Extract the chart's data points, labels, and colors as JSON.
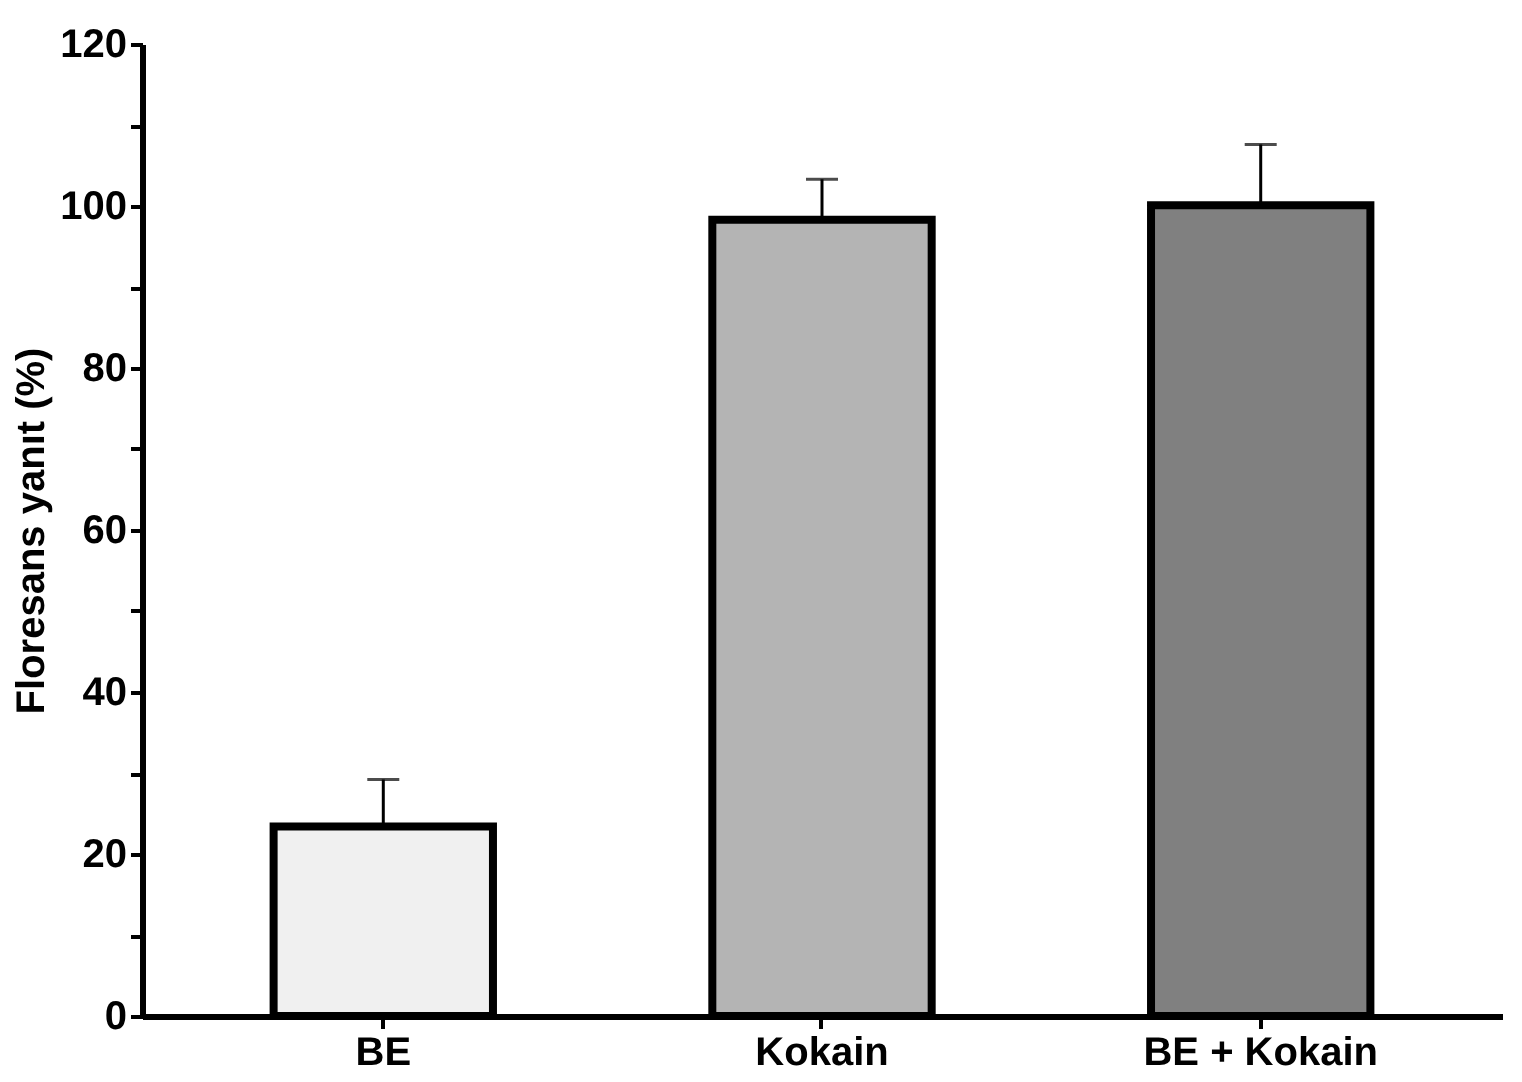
{
  "chart_data": {
    "type": "bar",
    "ylabel": "Floresans yanıt (%)",
    "categories": [
      "BE",
      "Kokain",
      "BE + Kokain"
    ],
    "values": [
      23.4,
      98.3,
      100.1
    ],
    "colors": [
      "#f0f0f0",
      "#b4b4b4",
      "#808080"
    ],
    "errors": [
      [
        23.4,
        29.2
      ],
      [
        98.3,
        103.3
      ],
      [
        100.1,
        107.6
      ]
    ],
    "ylim": [
      0,
      120
    ],
    "yticks": [
      0,
      {
        "value": 10,
        "label": null
      },
      20,
      {
        "value": 30,
        "label": null
      },
      40,
      {
        "value": 50,
        "label": null
      },
      60,
      {
        "value": 70,
        "label": null
      },
      80,
      {
        "value": 90,
        "label": null
      },
      100,
      {
        "value": 110,
        "label": null
      },
      120
    ],
    "grid": false
  }
}
